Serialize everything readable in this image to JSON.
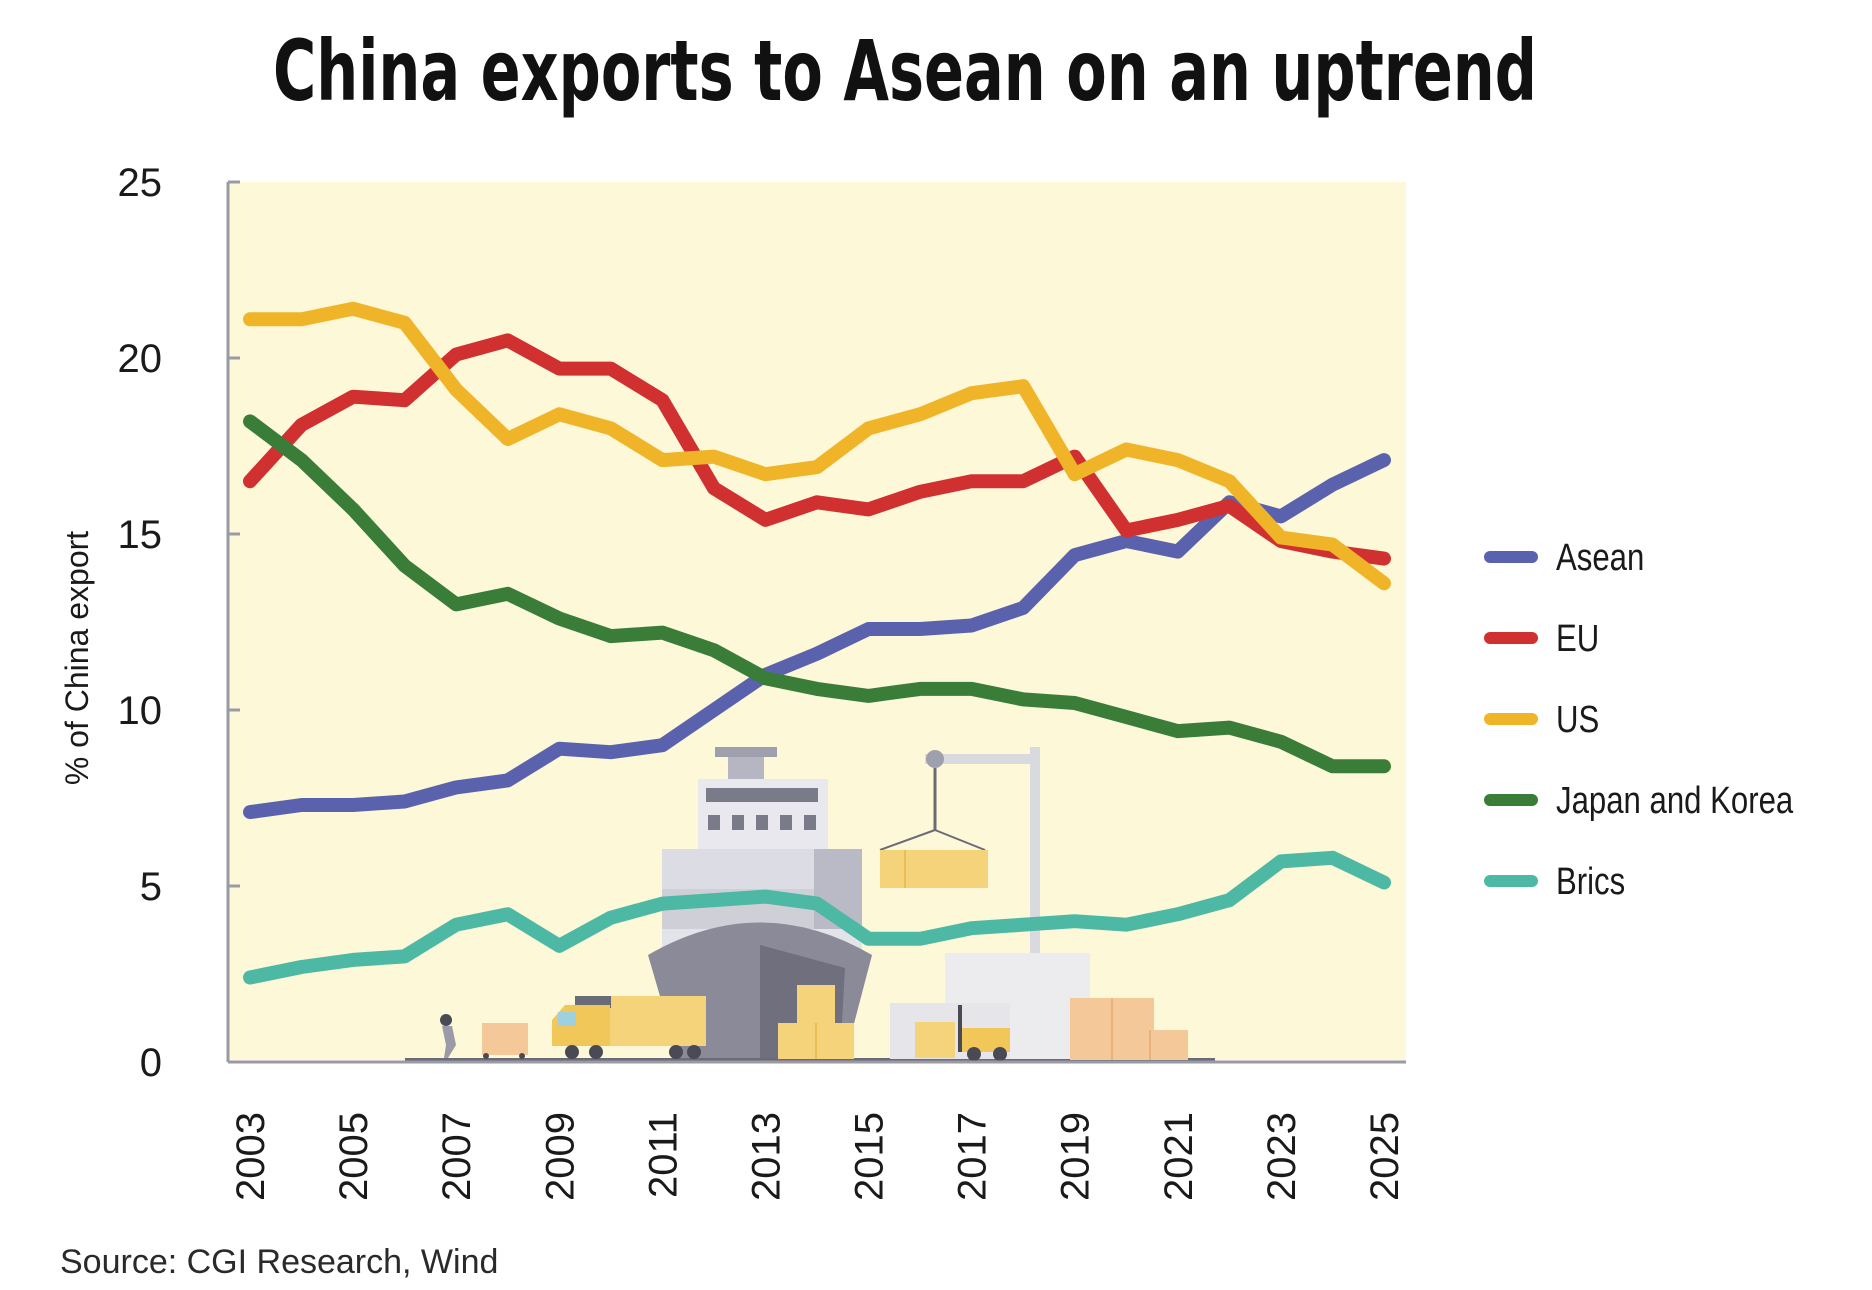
{
  "chart_data": {
    "type": "line",
    "title": "China exports to Asean on an uptrend",
    "ylabel": "% of China export",
    "xlabel": "",
    "ylim": [
      0,
      25
    ],
    "yticks": [
      0,
      5,
      10,
      15,
      20,
      25
    ],
    "xlim": [
      2003,
      2025
    ],
    "xticks": [
      "2003",
      "2005",
      "2007",
      "2009",
      "2011",
      "2013",
      "2015",
      "2017",
      "2019",
      "2021",
      "2023",
      "2025"
    ],
    "x": [
      2003,
      2004,
      2005,
      2006,
      2007,
      2008,
      2009,
      2010,
      2011,
      2012,
      2013,
      2014,
      2015,
      2016,
      2017,
      2018,
      2019,
      2020,
      2021,
      2022,
      2023,
      2024,
      2025
    ],
    "grid": false,
    "legend_position": "right",
    "background_color": "#fdf8d8",
    "series": [
      {
        "name": "Asean",
        "color": "#5b62ad",
        "values": [
          7.1,
          7.3,
          7.3,
          7.4,
          7.8,
          8.0,
          8.9,
          8.8,
          9.0,
          10.0,
          11.0,
          11.6,
          12.3,
          12.3,
          12.4,
          12.9,
          14.4,
          14.8,
          14.5,
          15.9,
          15.5,
          16.4,
          17.1
        ]
      },
      {
        "name": "EU",
        "color": "#d03030",
        "values": [
          16.5,
          18.1,
          18.9,
          18.8,
          20.1,
          20.5,
          19.7,
          19.7,
          18.8,
          16.3,
          15.4,
          15.9,
          15.7,
          16.2,
          16.5,
          16.5,
          17.2,
          15.1,
          15.4,
          15.8,
          14.8,
          14.5,
          14.3
        ]
      },
      {
        "name": "US",
        "color": "#f0b429",
        "values": [
          21.1,
          21.1,
          21.4,
          21.0,
          19.1,
          17.7,
          18.4,
          18.0,
          17.1,
          17.2,
          16.7,
          16.9,
          18.0,
          18.4,
          19.0,
          19.2,
          16.7,
          17.4,
          17.1,
          16.5,
          14.9,
          14.7,
          13.6
        ]
      },
      {
        "name": "Japan and Korea",
        "color": "#3a7d38",
        "values": [
          18.2,
          17.1,
          15.7,
          14.1,
          13.0,
          13.3,
          12.6,
          12.1,
          12.2,
          11.7,
          10.9,
          10.6,
          10.4,
          10.6,
          10.6,
          10.3,
          10.2,
          9.8,
          9.4,
          9.5,
          9.1,
          8.4,
          8.4
        ]
      },
      {
        "name": "Brics",
        "color": "#4db8a4",
        "values": [
          2.4,
          2.7,
          2.9,
          3.0,
          3.9,
          4.2,
          3.3,
          4.1,
          4.5,
          4.6,
          4.7,
          4.5,
          3.5,
          3.5,
          3.8,
          3.9,
          4.0,
          3.9,
          4.2,
          4.6,
          5.7,
          5.8,
          5.1
        ]
      }
    ]
  },
  "footer": {
    "source": "Source: CGI Research, Wind"
  }
}
